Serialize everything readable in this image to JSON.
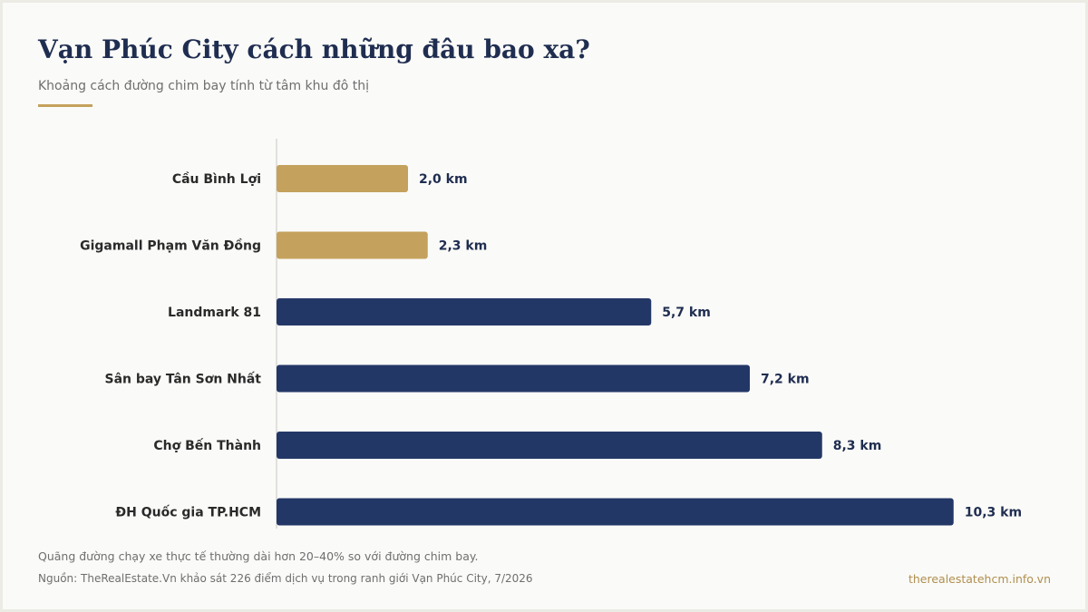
{
  "header": {
    "title": "Vạn Phúc City cách những đâu bao xa?",
    "subtitle": "Khoảng cách đường chim bay tính từ tâm khu đô thị"
  },
  "colors": {
    "accent": "#c4a15c",
    "primary": "#233767",
    "title": "#1f2d50"
  },
  "chart_data": {
    "type": "bar",
    "orientation": "horizontal",
    "categories": [
      "Cầu Bình Lợi",
      "Gigamall Phạm Văn Đồng",
      "Landmark 81",
      "Sân bay Tân Sơn Nhất",
      "Chợ Bến Thành",
      "ĐH Quốc gia TP.HCM"
    ],
    "values": [
      2.0,
      2.3,
      5.7,
      7.2,
      8.3,
      10.3
    ],
    "value_labels": [
      "2,0 km",
      "2,3 km",
      "5,7 km",
      "7,2 km",
      "8,3 km",
      "10,3 km"
    ],
    "unit": "km",
    "bar_colors": [
      "#c4a15c",
      "#c4a15c",
      "#233767",
      "#233767",
      "#233767",
      "#233767"
    ],
    "grid": false,
    "legend": "none"
  },
  "footer": {
    "note": "Quãng đường chạy xe thực tế thường dài hơn 20–40% so với đường chim bay.",
    "source": "Nguồn: TheRealEstate.Vn khảo sát 226 điểm dịch vụ trong ranh giới Vạn Phúc City, 7/2026",
    "site": "therealestatehcm.info.vn"
  }
}
